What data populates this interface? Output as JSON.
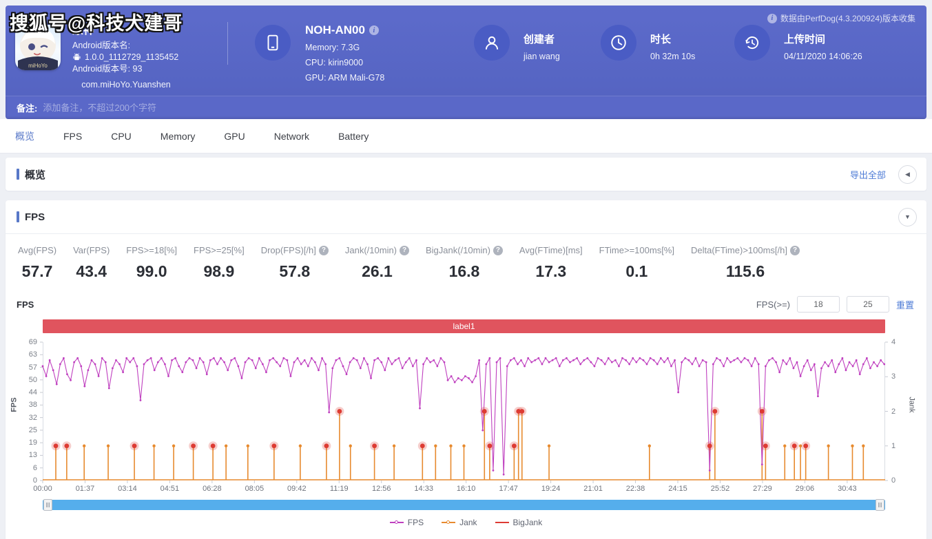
{
  "watermark": "搜狐号@科技犬建哥",
  "header": {
    "app": {
      "name": "原神",
      "brand": "miHoYo",
      "version_name_label": "Android版本名:",
      "version_name": "1.0.0_1112729_1135452",
      "version_code_line": "Android版本号: 93",
      "package": "com.miHoYo.Yuanshen"
    },
    "device": {
      "model": "NOH-AN00",
      "memory": "Memory: 7.3G",
      "cpu": "CPU: kirin9000",
      "gpu": "GPU: ARM Mali-G78"
    },
    "creator": {
      "label": "创建者",
      "value": "jian wang"
    },
    "duration": {
      "label": "时长",
      "value": "0h 32m 10s"
    },
    "upload": {
      "label": "上传时间",
      "value": "04/11/2020 14:06:26"
    },
    "source_note": "数据由PerfDog(4.3.200924)版本收集"
  },
  "note_bar": {
    "label": "备注:",
    "placeholder": "添加备注，不超过200个字符"
  },
  "tabs": {
    "items": [
      "概览",
      "FPS",
      "CPU",
      "Memory",
      "GPU",
      "Network",
      "Battery"
    ],
    "active_index": 0
  },
  "overview": {
    "title": "概览",
    "export_label": "导出全部"
  },
  "fps_section": {
    "title": "FPS",
    "stats": [
      {
        "label": "Avg(FPS)",
        "value": "57.7",
        "help": false
      },
      {
        "label": "Var(FPS)",
        "value": "43.4",
        "help": false
      },
      {
        "label": "FPS>=18[%]",
        "value": "99.0",
        "help": false
      },
      {
        "label": "FPS>=25[%]",
        "value": "98.9",
        "help": false
      },
      {
        "label": "Drop(FPS)[/h]",
        "value": "57.8",
        "help": true
      },
      {
        "label": "Jank(/10min)",
        "value": "26.1",
        "help": true
      },
      {
        "label": "BigJank(/10min)",
        "value": "16.8",
        "help": true
      },
      {
        "label": "Avg(FTime)[ms]",
        "value": "17.3",
        "help": false
      },
      {
        "label": "FTime>=100ms[%]",
        "value": "0.1",
        "help": false
      },
      {
        "label": "Delta(FTime)>100ms[/h]",
        "value": "115.6",
        "help": true
      }
    ],
    "chart_mini_title": "FPS",
    "filter": {
      "label": "FPS(>=)",
      "min": "18",
      "max": "25",
      "reset_label": "重置"
    }
  },
  "chart_data": {
    "type": "line",
    "title": "label1",
    "ylabel_left": "FPS",
    "ylabel_right": "Jank",
    "ylim_left": [
      0,
      69
    ],
    "ylim_right": [
      0,
      4
    ],
    "y_ticks_left": [
      69,
      63,
      57,
      50,
      44,
      38,
      32,
      25,
      19,
      13,
      6,
      0
    ],
    "y_ticks_right": [
      4,
      3,
      2,
      1,
      0
    ],
    "x_labels": [
      "00:00",
      "01:37",
      "03:14",
      "04:51",
      "06:28",
      "08:05",
      "09:42",
      "11:19",
      "12:56",
      "14:33",
      "16:10",
      "17:47",
      "19:24",
      "21:01",
      "22:38",
      "24:15",
      "25:52",
      "27:29",
      "29:06",
      "30:43"
    ],
    "x_label_interval_seconds": 97,
    "x_domain_seconds": [
      0,
      1930
    ],
    "grid": false,
    "legend": [
      "FPS",
      "Jank",
      "BigJank"
    ],
    "legend_position": "bottom",
    "colors": {
      "fps": "#bf3fbf",
      "jank": "#e78a2e",
      "bigjank": "#dd3b33",
      "band": "#e0545e",
      "scrollbar": "#55aeec"
    },
    "fps_series": {
      "name": "FPS",
      "step_seconds": 8,
      "values": [
        57,
        52,
        60,
        55,
        48,
        58,
        61,
        53,
        50,
        59,
        61,
        57,
        47,
        55,
        60,
        58,
        52,
        61,
        59,
        46,
        56,
        60,
        58,
        54,
        61,
        59,
        61,
        57,
        40,
        58,
        60,
        61,
        55,
        59,
        61,
        58,
        52,
        60,
        61,
        57,
        54,
        59,
        61,
        60,
        56,
        61,
        59,
        53,
        60,
        61,
        58,
        61,
        59,
        55,
        60,
        61,
        57,
        51,
        59,
        61,
        60,
        56,
        61,
        58,
        54,
        60,
        61,
        59,
        57,
        61,
        60,
        52,
        59,
        61,
        58,
        60,
        57,
        61,
        59,
        55,
        61,
        58,
        34,
        56,
        60,
        61,
        57,
        53,
        59,
        61,
        60,
        56,
        61,
        58,
        51,
        60,
        61,
        59,
        55,
        61,
        58,
        60,
        61,
        56,
        59,
        61,
        57,
        60,
        36,
        58,
        61,
        59,
        60,
        57,
        61,
        59,
        50,
        52,
        49,
        51,
        50,
        52,
        51,
        49,
        52,
        60,
        25,
        58,
        61,
        5,
        59,
        61,
        3,
        57,
        60,
        61,
        58,
        60,
        57,
        61,
        59,
        60,
        61,
        58,
        61,
        59,
        60,
        61,
        57,
        60,
        61,
        59,
        60,
        61,
        58,
        60,
        61,
        59,
        57,
        61,
        60,
        58,
        61,
        59,
        60,
        57,
        61,
        60,
        58,
        61,
        59,
        61,
        60,
        58,
        61,
        60,
        58,
        61,
        59,
        61,
        57,
        60,
        44,
        59,
        61,
        60,
        58,
        61,
        57,
        60,
        59,
        5,
        58,
        61,
        60,
        57,
        61,
        59,
        60,
        61,
        59,
        61,
        60,
        57,
        61,
        58,
        8,
        57,
        60,
        61,
        59,
        54,
        60,
        58,
        61,
        56,
        59,
        52,
        57,
        60,
        55,
        58,
        42,
        56,
        59,
        57,
        60,
        54,
        58,
        61,
        55,
        59,
        57,
        60,
        53,
        58,
        61,
        56,
        59,
        57,
        60,
        58
      ]
    },
    "jank_events": {
      "name": "Jank",
      "format": "[t_seconds, jank_value, is_bigjank]",
      "points": [
        [
          30,
          1,
          1
        ],
        [
          55,
          1,
          1
        ],
        [
          95,
          1,
          0
        ],
        [
          150,
          1,
          0
        ],
        [
          210,
          1,
          1
        ],
        [
          255,
          1,
          0
        ],
        [
          300,
          1,
          0
        ],
        [
          345,
          1,
          1
        ],
        [
          390,
          1,
          1
        ],
        [
          420,
          1,
          0
        ],
        [
          470,
          1,
          0
        ],
        [
          530,
          1,
          1
        ],
        [
          590,
          1,
          0
        ],
        [
          650,
          1,
          1
        ],
        [
          680,
          2,
          1
        ],
        [
          705,
          1,
          0
        ],
        [
          760,
          1,
          1
        ],
        [
          805,
          1,
          0
        ],
        [
          870,
          1,
          1
        ],
        [
          900,
          1,
          0
        ],
        [
          935,
          1,
          0
        ],
        [
          965,
          1,
          0
        ],
        [
          1012,
          2,
          1
        ],
        [
          1024,
          1,
          1
        ],
        [
          1080,
          1,
          1
        ],
        [
          1090,
          2,
          1
        ],
        [
          1098,
          2,
          1
        ],
        [
          1160,
          1,
          0
        ],
        [
          1390,
          1,
          0
        ],
        [
          1528,
          1,
          1
        ],
        [
          1540,
          2,
          1
        ],
        [
          1648,
          2,
          1
        ],
        [
          1656,
          1,
          1
        ],
        [
          1700,
          1,
          0
        ],
        [
          1722,
          1,
          1
        ],
        [
          1736,
          1,
          0
        ],
        [
          1748,
          1,
          1
        ],
        [
          1800,
          1,
          0
        ],
        [
          1855,
          1,
          0
        ],
        [
          1880,
          1,
          0
        ]
      ]
    }
  }
}
